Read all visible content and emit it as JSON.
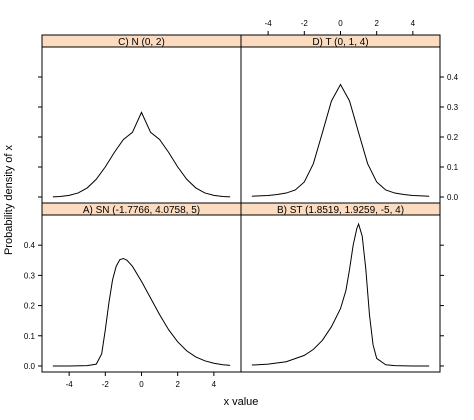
{
  "chart_data": {
    "type": "line",
    "layout": "lattice-2x2",
    "xlabel": "x value",
    "ylabel": "Probability density of x",
    "xlim": [
      -5.5,
      5.5
    ],
    "ylim": [
      -0.02,
      0.5
    ],
    "x_ticks": [
      -4,
      -2,
      0,
      2,
      4
    ],
    "y_ticks": [
      0.0,
      0.1,
      0.2,
      0.3,
      0.4
    ],
    "y_tick_labels": [
      "0.0",
      "0.1",
      "0.2",
      "0.3",
      "0.4"
    ],
    "x_range_plotted": [
      -4.9,
      4.9
    ],
    "panels": [
      {
        "id": "C",
        "title": "C) N (0, 2)",
        "position": "top-left",
        "x": [
          -4.9,
          -4.5,
          -4,
          -3.5,
          -3,
          -2.5,
          -2,
          -1.5,
          -1,
          -0.5,
          0,
          0.5,
          1,
          1.5,
          2,
          2.5,
          3,
          3.5,
          4,
          4.5,
          4.9
        ],
        "y": [
          0.0005,
          0.0018,
          0.0053,
          0.0135,
          0.0303,
          0.0591,
          0.1004,
          0.1487,
          0.1917,
          0.2157,
          0.2821,
          0.2157,
          0.1917,
          0.1487,
          0.1004,
          0.0591,
          0.0303,
          0.0135,
          0.0053,
          0.0018,
          0.0005
        ]
      },
      {
        "id": "D",
        "title": "D) T (0, 1, 4)",
        "position": "top-right",
        "x": [
          -4.9,
          -4.5,
          -4,
          -3.5,
          -3,
          -2.5,
          -2,
          -1.5,
          -1,
          -0.5,
          0,
          0.5,
          1,
          1.5,
          2,
          2.5,
          3,
          3.5,
          4,
          4.5,
          4.9
        ],
        "y": [
          0.0027,
          0.0037,
          0.0052,
          0.0082,
          0.0132,
          0.0234,
          0.0501,
          0.111,
          0.2147,
          0.32,
          0.375,
          0.32,
          0.2147,
          0.111,
          0.0501,
          0.0234,
          0.0132,
          0.0082,
          0.0052,
          0.0037,
          0.0027
        ]
      },
      {
        "id": "A",
        "title": "A) SN (-1.7766, 4.0758, 5)",
        "position": "bottom-left",
        "x": [
          -4.9,
          -4,
          -3,
          -2.5,
          -2.2,
          -2,
          -1.8,
          -1.6,
          -1.4,
          -1.2,
          -1,
          -0.8,
          -0.5,
          0,
          0.5,
          1,
          1.5,
          2,
          2.5,
          3,
          3.5,
          4,
          4.5,
          4.9
        ],
        "y": [
          0,
          0,
          0.001,
          0.006,
          0.04,
          0.12,
          0.21,
          0.285,
          0.33,
          0.352,
          0.356,
          0.35,
          0.33,
          0.28,
          0.225,
          0.17,
          0.12,
          0.08,
          0.05,
          0.03,
          0.017,
          0.009,
          0.004,
          0.002
        ]
      },
      {
        "id": "B",
        "title": "B) ST (1.8519, 1.9259, -5, 4)",
        "position": "bottom-right",
        "x": [
          -4.9,
          -4,
          -3,
          -2,
          -1.5,
          -1,
          -0.5,
          0,
          0.3,
          0.5,
          0.7,
          0.9,
          1.0,
          1.2,
          1.4,
          1.6,
          1.8,
          2.0,
          2.5,
          3,
          4,
          4.9
        ],
        "y": [
          0.003,
          0.006,
          0.014,
          0.035,
          0.055,
          0.085,
          0.13,
          0.19,
          0.25,
          0.32,
          0.4,
          0.455,
          0.47,
          0.43,
          0.32,
          0.17,
          0.07,
          0.025,
          0.004,
          0.001,
          0,
          0
        ]
      }
    ]
  }
}
